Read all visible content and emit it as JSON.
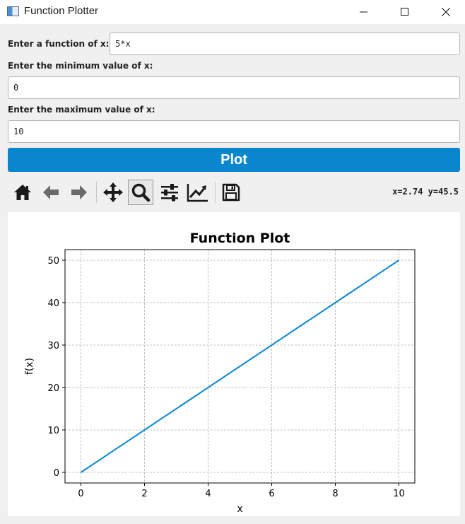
{
  "window": {
    "title": "Function Plotter",
    "controls": [
      "minimize-icon",
      "maximize-icon",
      "close-icon"
    ]
  },
  "form": {
    "function_label": "Enter a function of x:",
    "function_value": "5*x",
    "min_label": "Enter the minimum value of x:",
    "min_value": "0",
    "max_label": "Enter the maximum value of x:",
    "max_value": "10",
    "plot_button": "Plot"
  },
  "toolbar": {
    "buttons": [
      "home-icon",
      "back-arrow-icon",
      "forward-arrow-icon",
      "pan-icon",
      "zoom-icon",
      "configure-subplots-icon",
      "edit-axis-icon",
      "save-icon"
    ],
    "active": "zoom-icon",
    "coordinates": "x=2.74 y=45.5"
  },
  "colors": {
    "accent": "#0a86cf",
    "line": "#0a86cf",
    "background": "#f0f0f0"
  },
  "chart_data": {
    "type": "line",
    "title": "Function Plot",
    "xlabel": "x",
    "ylabel": "f(x)",
    "x": [
      0,
      10
    ],
    "y": [
      0,
      50
    ],
    "xlim": [
      -0.5,
      10.5
    ],
    "ylim": [
      -2.5,
      52.5
    ],
    "xticks": [
      0,
      2,
      4,
      6,
      8,
      10
    ],
    "yticks": [
      0,
      10,
      20,
      30,
      40,
      50
    ],
    "grid": true
  }
}
